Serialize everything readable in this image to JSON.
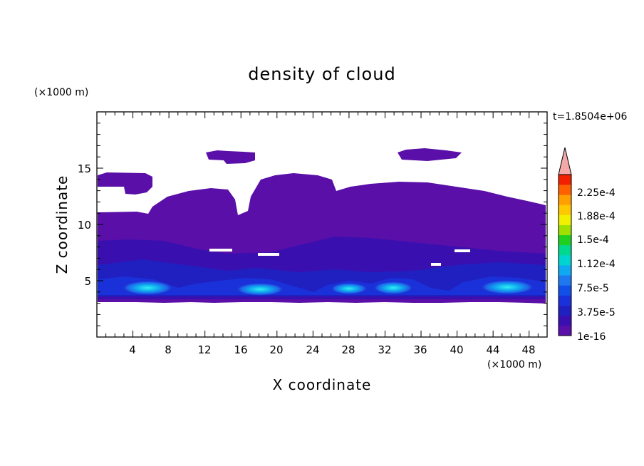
{
  "chart_data": {
    "type": "heatmap",
    "title": "density of cloud",
    "xlabel": "X coordinate",
    "ylabel": "Z coordinate",
    "x_unit": "(×1000 m)",
    "y_unit": "(×1000 m)",
    "time_label": "t=1.8504e+06",
    "xlim": [
      0,
      50
    ],
    "ylim": [
      0,
      20
    ],
    "x_ticks": [
      "4",
      "8",
      "12",
      "16",
      "20",
      "24",
      "28",
      "32",
      "36",
      "40",
      "44",
      "48"
    ],
    "y_ticks": [
      "5",
      "10",
      "15"
    ],
    "colorbar_labels": [
      "2.25e-4",
      "1.88e-4",
      "1.5e-4",
      "1.12e-4",
      "7.5e-5",
      "3.75e-5",
      "1e-16"
    ],
    "colorbar_colors": [
      "#5a0fa8",
      "#3a0fb0",
      "#2020c0",
      "#1a30d8",
      "#1050e6",
      "#1f78f0",
      "#10a8f0",
      "#00d4d0",
      "#00d890",
      "#20d020",
      "#a0e000",
      "#f0f000",
      "#ffc800",
      "#ffa000",
      "#ff6000",
      "#f02000"
    ],
    "extend_color": "#f4a8a8",
    "grid": false,
    "shading": "filled contours"
  }
}
